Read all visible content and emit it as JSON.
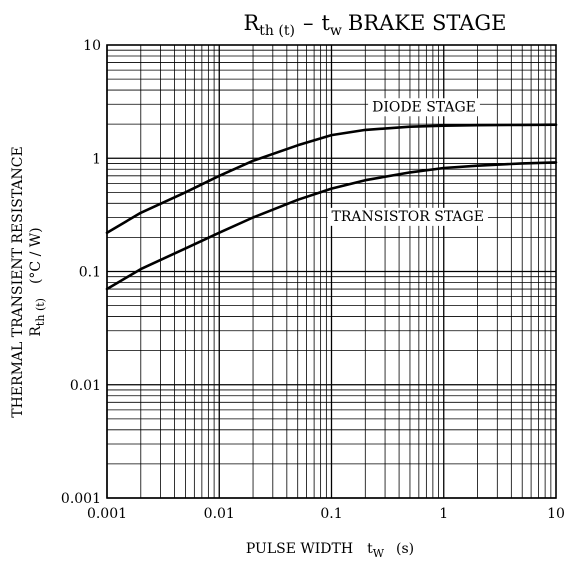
{
  "chart_data": {
    "type": "line",
    "title": {
      "r": "R",
      "r_sub": "th (t)",
      "dash": "–",
      "t": "t",
      "t_sub": "w",
      "rest": "BRAKE STAGE"
    },
    "xlabel": {
      "main": "PULSE WIDTH",
      "t": "t",
      "t_sub": "W",
      "unit": "(s)"
    },
    "ylabel": {
      "line1": "THERMAL TRANSIENT RESISTANCE",
      "r": "R",
      "r_sub": "th (t)",
      "unit": "(°C / W)"
    },
    "xscale": "log",
    "yscale": "log",
    "xlim": [
      0.001,
      10
    ],
    "ylim": [
      0.001,
      10
    ],
    "grid": true,
    "x_ticks": [
      "0.001",
      "0.01",
      "0.1",
      "1",
      "10"
    ],
    "y_ticks": [
      "0.001",
      "0.01",
      "0.1",
      "1",
      "10"
    ],
    "series": [
      {
        "name": "DIODE STAGE",
        "x": [
          0.001,
          0.002,
          0.005,
          0.01,
          0.02,
          0.05,
          0.1,
          0.2,
          0.5,
          1,
          2,
          5,
          10
        ],
        "y": [
          0.22,
          0.33,
          0.5,
          0.7,
          0.95,
          1.3,
          1.6,
          1.78,
          1.9,
          1.94,
          1.96,
          1.97,
          1.98
        ]
      },
      {
        "name": "TRANSISTOR STAGE",
        "x": [
          0.001,
          0.002,
          0.005,
          0.01,
          0.02,
          0.05,
          0.1,
          0.2,
          0.5,
          1,
          2,
          5,
          10
        ],
        "y": [
          0.07,
          0.105,
          0.16,
          0.22,
          0.3,
          0.43,
          0.54,
          0.64,
          0.75,
          0.82,
          0.86,
          0.9,
          0.92
        ]
      }
    ]
  }
}
